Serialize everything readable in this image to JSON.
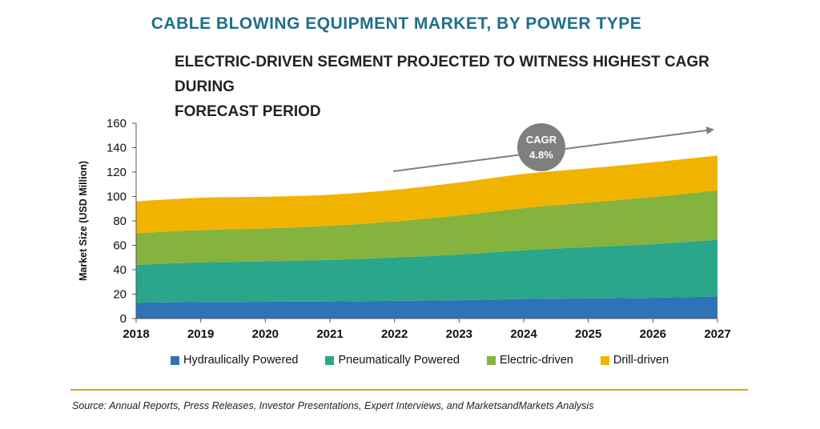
{
  "header": {
    "title": "CABLE BLOWING EQUIPMENT MARKET, BY POWER TYPE",
    "subtitle_line1": "ELECTRIC-DRIVEN SEGMENT PROJECTED TO WITNESS HIGHEST CAGR DURING",
    "subtitle_line2": "FORECAST PERIOD"
  },
  "colors": {
    "title": "#1f6f8b",
    "subtitle": "#222222",
    "hydraulic": "#2f72b8",
    "pneumatic": "#2aa68a",
    "electric": "#84b33e",
    "drill": "#f0b400",
    "badge": "#7f7f7f",
    "arrow": "#7f7f7f",
    "divider": "#d4a514"
  },
  "annotation": {
    "label": "CAGR",
    "value": "4.8%"
  },
  "source": "Source: Annual Reports, Press Releases, Investor Presentations, Expert Interviews, and MarketsandMarkets Analysis",
  "chart_data": {
    "type": "area",
    "stacked": true,
    "x": [
      "2018",
      "2019",
      "2020",
      "2021",
      "2022",
      "2023",
      "2024",
      "2025",
      "2026",
      "2027"
    ],
    "ylabel": "Market Size (USD Million)",
    "xlabel": "",
    "ylim": [
      0,
      160
    ],
    "yticks": [
      0,
      20,
      40,
      60,
      80,
      100,
      120,
      140,
      160
    ],
    "grid": false,
    "legend_position": "bottom",
    "series": [
      {
        "name": "Hydraulically Powered",
        "values": [
          13,
          13.5,
          13.8,
          14,
          14.5,
          15,
          16,
          16.5,
          17,
          18
        ]
      },
      {
        "name": "Pneumatically Powered",
        "values": [
          31,
          32.5,
          33,
          34,
          35.5,
          37.5,
          40,
          42,
          44,
          46.5
        ]
      },
      {
        "name": "Electric-driven",
        "values": [
          26,
          26.5,
          27,
          28,
          29.5,
          32,
          34.5,
          36.5,
          38.5,
          40.5
        ]
      },
      {
        "name": "Drill-driven",
        "values": [
          26,
          26.5,
          26,
          25.5,
          26,
          27,
          28,
          28,
          28.5,
          28.5
        ]
      }
    ]
  }
}
